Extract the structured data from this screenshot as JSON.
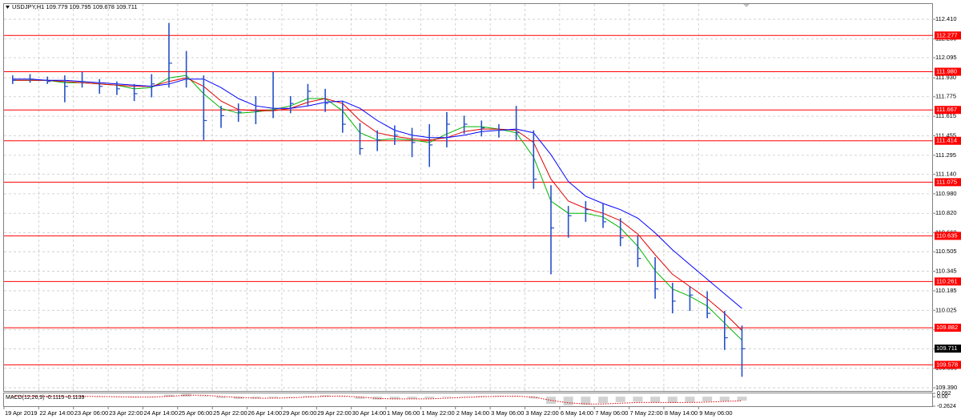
{
  "chart_data": {
    "type": "ohlc",
    "title": "USDJPY,H1  109.779 109.795 109.678 109.711",
    "xlim": [
      0,
      53.5
    ],
    "xticks": [
      {
        "value": 0,
        "label": "19 Apr 2019"
      },
      {
        "value": 2,
        "label": "22 Apr 14:00"
      },
      {
        "value": 4,
        "label": "23 Apr 06:00"
      },
      {
        "value": 6,
        "label": "23 Apr 22:00"
      },
      {
        "value": 8,
        "label": "24 Apr 14:00"
      },
      {
        "value": 10,
        "label": "25 Apr 06:00"
      },
      {
        "value": 12,
        "label": "25 Apr 22:00"
      },
      {
        "value": 14,
        "label": "26 Apr 14:00"
      },
      {
        "value": 16,
        "label": "29 Apr 06:00"
      },
      {
        "value": 18,
        "label": "29 Apr 22:00"
      },
      {
        "value": 20,
        "label": "30 Apr 14:00"
      },
      {
        "value": 22,
        "label": "1 May 06:00"
      },
      {
        "value": 24,
        "label": "1 May 22:00"
      },
      {
        "value": 26,
        "label": "2 May 14:00"
      },
      {
        "value": 28,
        "label": "3 May 06:00"
      },
      {
        "value": 30,
        "label": "3 May 22:00"
      },
      {
        "value": 32,
        "label": "6 May 14:00"
      },
      {
        "value": 34,
        "label": "7 May 06:00"
      },
      {
        "value": 36,
        "label": "7 May 22:00"
      },
      {
        "value": 38,
        "label": "8 May 14:00"
      },
      {
        "value": 40,
        "label": "9 May 06:00"
      }
    ],
    "ylim": [
      109.364,
      112.535
    ],
    "yticks": [
      {
        "value": 112.41,
        "label": "112.410"
      },
      {
        "value": 112.25,
        "label": "112.250"
      },
      112.095,
      {
        "value": 111.93,
        "label": "111.930"
      },
      111.775,
      111.615,
      111.455,
      111.295,
      {
        "value": 111.14,
        "label": "111.140"
      },
      {
        "value": 110.98,
        "label": "110.980"
      },
      {
        "value": 110.82,
        "label": "110.820"
      },
      {
        "value": 110.66,
        "label": "110.660"
      },
      110.505,
      110.345,
      110.185,
      110.025,
      109.865,
      {
        "value": 109.71,
        "label": "109.710"
      },
      {
        "value": 109.55,
        "label": "109.550"
      },
      {
        "value": 109.39,
        "label": "109.390"
      }
    ],
    "grid": true,
    "bar_color": "#2450c8",
    "high": [
      111.95,
      111.96,
      111.94,
      111.95,
      111.98,
      111.92,
      111.9,
      111.88,
      111.96,
      112.38,
      112.15,
      111.95,
      111.7,
      111.72,
      111.78,
      111.98,
      111.78,
      111.88,
      111.84,
      111.74,
      111.56,
      111.5,
      111.54,
      111.52,
      111.55,
      111.65,
      111.62,
      111.58,
      111.55,
      111.7,
      111.5,
      111.05,
      110.88,
      110.92,
      110.9,
      110.78,
      110.64,
      110.46,
      110.25,
      110.22,
      110.18,
      110.02,
      109.9
    ],
    "low": [
      111.88,
      111.89,
      111.88,
      111.73,
      111.85,
      111.8,
      111.79,
      111.74,
      111.77,
      111.85,
      111.85,
      111.42,
      111.52,
      111.57,
      111.55,
      111.6,
      111.64,
      111.7,
      111.65,
      111.48,
      111.3,
      111.33,
      111.38,
      111.28,
      111.2,
      111.36,
      111.47,
      111.45,
      111.44,
      111.42,
      111.02,
      110.32,
      110.62,
      110.75,
      110.7,
      110.55,
      110.38,
      110.12,
      110.0,
      110.02,
      109.96,
      109.7,
      109.48
    ],
    "close": [
      111.91,
      111.92,
      111.9,
      111.86,
      111.9,
      111.86,
      111.84,
      111.8,
      111.88,
      112.05,
      111.92,
      111.58,
      111.62,
      111.65,
      111.66,
      111.68,
      111.72,
      111.82,
      111.72,
      111.55,
      111.35,
      111.42,
      111.46,
      111.4,
      111.38,
      111.55,
      111.55,
      111.52,
      111.5,
      111.48,
      111.1,
      110.7,
      110.8,
      110.85,
      110.75,
      110.62,
      110.45,
      110.2,
      110.1,
      110.15,
      110.0,
      109.8,
      109.71
    ],
    "moving_averages": [
      {
        "color": "#00b400",
        "values": [
          111.91,
          111.91,
          111.91,
          111.89,
          111.89,
          111.88,
          111.87,
          111.84,
          111.85,
          111.93,
          111.95,
          111.8,
          111.68,
          111.64,
          111.65,
          111.67,
          111.7,
          111.76,
          111.76,
          111.66,
          111.48,
          111.42,
          111.43,
          111.42,
          111.4,
          111.47,
          111.53,
          111.53,
          111.51,
          111.48,
          111.28,
          110.92,
          110.82,
          110.82,
          110.79,
          110.7,
          110.55,
          110.35,
          110.2,
          110.14,
          110.06,
          109.92,
          109.78
        ]
      },
      {
        "color": "#e00000",
        "values": [
          111.91,
          111.91,
          111.91,
          111.9,
          111.89,
          111.88,
          111.87,
          111.86,
          111.86,
          111.9,
          111.93,
          111.86,
          111.74,
          111.67,
          111.66,
          111.66,
          111.68,
          111.73,
          111.76,
          111.72,
          111.58,
          111.48,
          111.45,
          111.43,
          111.42,
          111.44,
          111.49,
          111.51,
          111.51,
          111.5,
          111.4,
          111.1,
          110.92,
          110.86,
          110.82,
          110.76,
          110.65,
          110.48,
          110.32,
          110.22,
          110.12,
          110.0,
          109.86
        ]
      },
      {
        "color": "#0000ff",
        "values": [
          111.92,
          111.92,
          111.91,
          111.91,
          111.9,
          111.89,
          111.88,
          111.87,
          111.86,
          111.88,
          111.92,
          111.92,
          111.85,
          111.76,
          111.7,
          111.68,
          111.68,
          111.7,
          111.73,
          111.74,
          111.68,
          111.58,
          111.5,
          111.46,
          111.44,
          111.44,
          111.46,
          111.49,
          111.5,
          111.51,
          111.48,
          111.3,
          111.08,
          110.96,
          110.9,
          110.85,
          110.78,
          110.66,
          110.52,
          110.4,
          110.28,
          110.16,
          110.04
        ]
      }
    ],
    "levels": [
      112.277,
      111.98,
      111.667,
      111.414,
      111.075,
      110.635,
      110.261,
      109.882,
      109.578
    ],
    "level_labels": [
      "112.277",
      "111.980",
      "111.667",
      "111.414",
      "111.075",
      "110.635",
      "110.261",
      "109.882",
      "109.578"
    ],
    "level_color": "#ff0000",
    "last_price": 109.711,
    "macd": {
      "title": "MACD(12,26,9) -0.1115 -0.1139",
      "ylim": [
        -0.2624,
        0.092
      ],
      "yticks": [
        0.092,
        {
          "value": 0,
          "label": "0.00"
        },
        -0.2624
      ],
      "histogram_color": "#b4b4b4",
      "signal_color": "#e00000",
      "histogram": [
        0.02,
        0.02,
        0.01,
        0.0,
        0.01,
        0.0,
        -0.01,
        -0.02,
        -0.01,
        0.06,
        0.08,
        0.02,
        -0.04,
        -0.06,
        -0.05,
        -0.03,
        -0.01,
        0.02,
        0.04,
        0.0,
        -0.06,
        -0.08,
        -0.07,
        -0.06,
        -0.05,
        -0.02,
        0.01,
        0.02,
        0.02,
        0.01,
        -0.05,
        -0.2,
        -0.24,
        -0.22,
        -0.18,
        -0.15,
        -0.14,
        -0.16,
        -0.17,
        -0.15,
        -0.13,
        -0.12,
        -0.1115
      ],
      "signal": [
        0.01,
        0.015,
        0.015,
        0.01,
        0.01,
        0.005,
        0.0,
        -0.01,
        -0.01,
        0.01,
        0.04,
        0.04,
        0.01,
        -0.02,
        -0.04,
        -0.04,
        -0.03,
        -0.01,
        0.01,
        0.02,
        -0.01,
        -0.05,
        -0.06,
        -0.06,
        -0.06,
        -0.04,
        -0.02,
        0.0,
        0.01,
        0.015,
        -0.01,
        -0.1,
        -0.17,
        -0.2,
        -0.2,
        -0.18,
        -0.16,
        -0.16,
        -0.16,
        -0.16,
        -0.15,
        -0.13,
        -0.1139
      ]
    }
  }
}
